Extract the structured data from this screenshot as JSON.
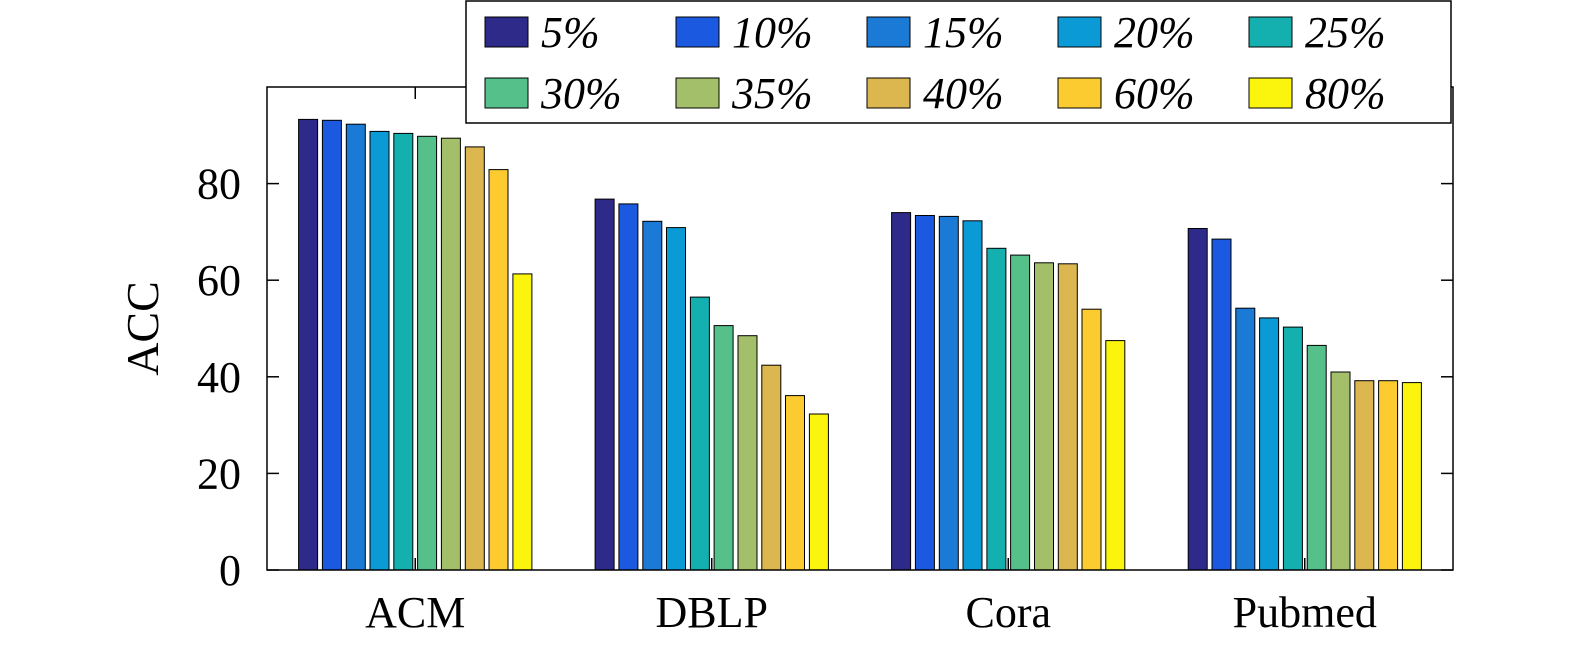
{
  "chart_data": {
    "type": "bar",
    "xlabel": "",
    "ylabel": "ACC",
    "ylim": [
      0,
      100
    ],
    "yticks": [
      0,
      20,
      40,
      60,
      80
    ],
    "categories": [
      "ACM",
      "DBLP",
      "Cora",
      "Pubmed"
    ],
    "legend_position": "top-right",
    "grid": false,
    "series": [
      {
        "name": "5%",
        "color": "#2e2a8a",
        "values": [
          93.3,
          76.8,
          74.0,
          70.7
        ]
      },
      {
        "name": "10%",
        "color": "#1b5ae0",
        "values": [
          93.1,
          75.8,
          73.4,
          68.5
        ]
      },
      {
        "name": "15%",
        "color": "#1a7ad6",
        "values": [
          92.3,
          72.2,
          73.2,
          54.2
        ]
      },
      {
        "name": "20%",
        "color": "#0a9ad6",
        "values": [
          90.8,
          70.9,
          72.3,
          52.2
        ]
      },
      {
        "name": "25%",
        "color": "#14b0b0",
        "values": [
          90.4,
          56.5,
          66.6,
          50.3
        ]
      },
      {
        "name": "30%",
        "color": "#55c08a",
        "values": [
          89.8,
          50.6,
          65.2,
          46.5
        ]
      },
      {
        "name": "35%",
        "color": "#a4bf6a",
        "values": [
          89.4,
          48.5,
          63.6,
          41.0
        ]
      },
      {
        "name": "40%",
        "color": "#dcb64e",
        "values": [
          87.6,
          42.4,
          63.4,
          39.2
        ]
      },
      {
        "name": "60%",
        "color": "#fbcb30",
        "values": [
          82.9,
          36.1,
          54.0,
          39.2
        ]
      },
      {
        "name": "80%",
        "color": "#fbf50e",
        "values": [
          61.3,
          32.3,
          47.5,
          38.8
        ]
      }
    ]
  }
}
